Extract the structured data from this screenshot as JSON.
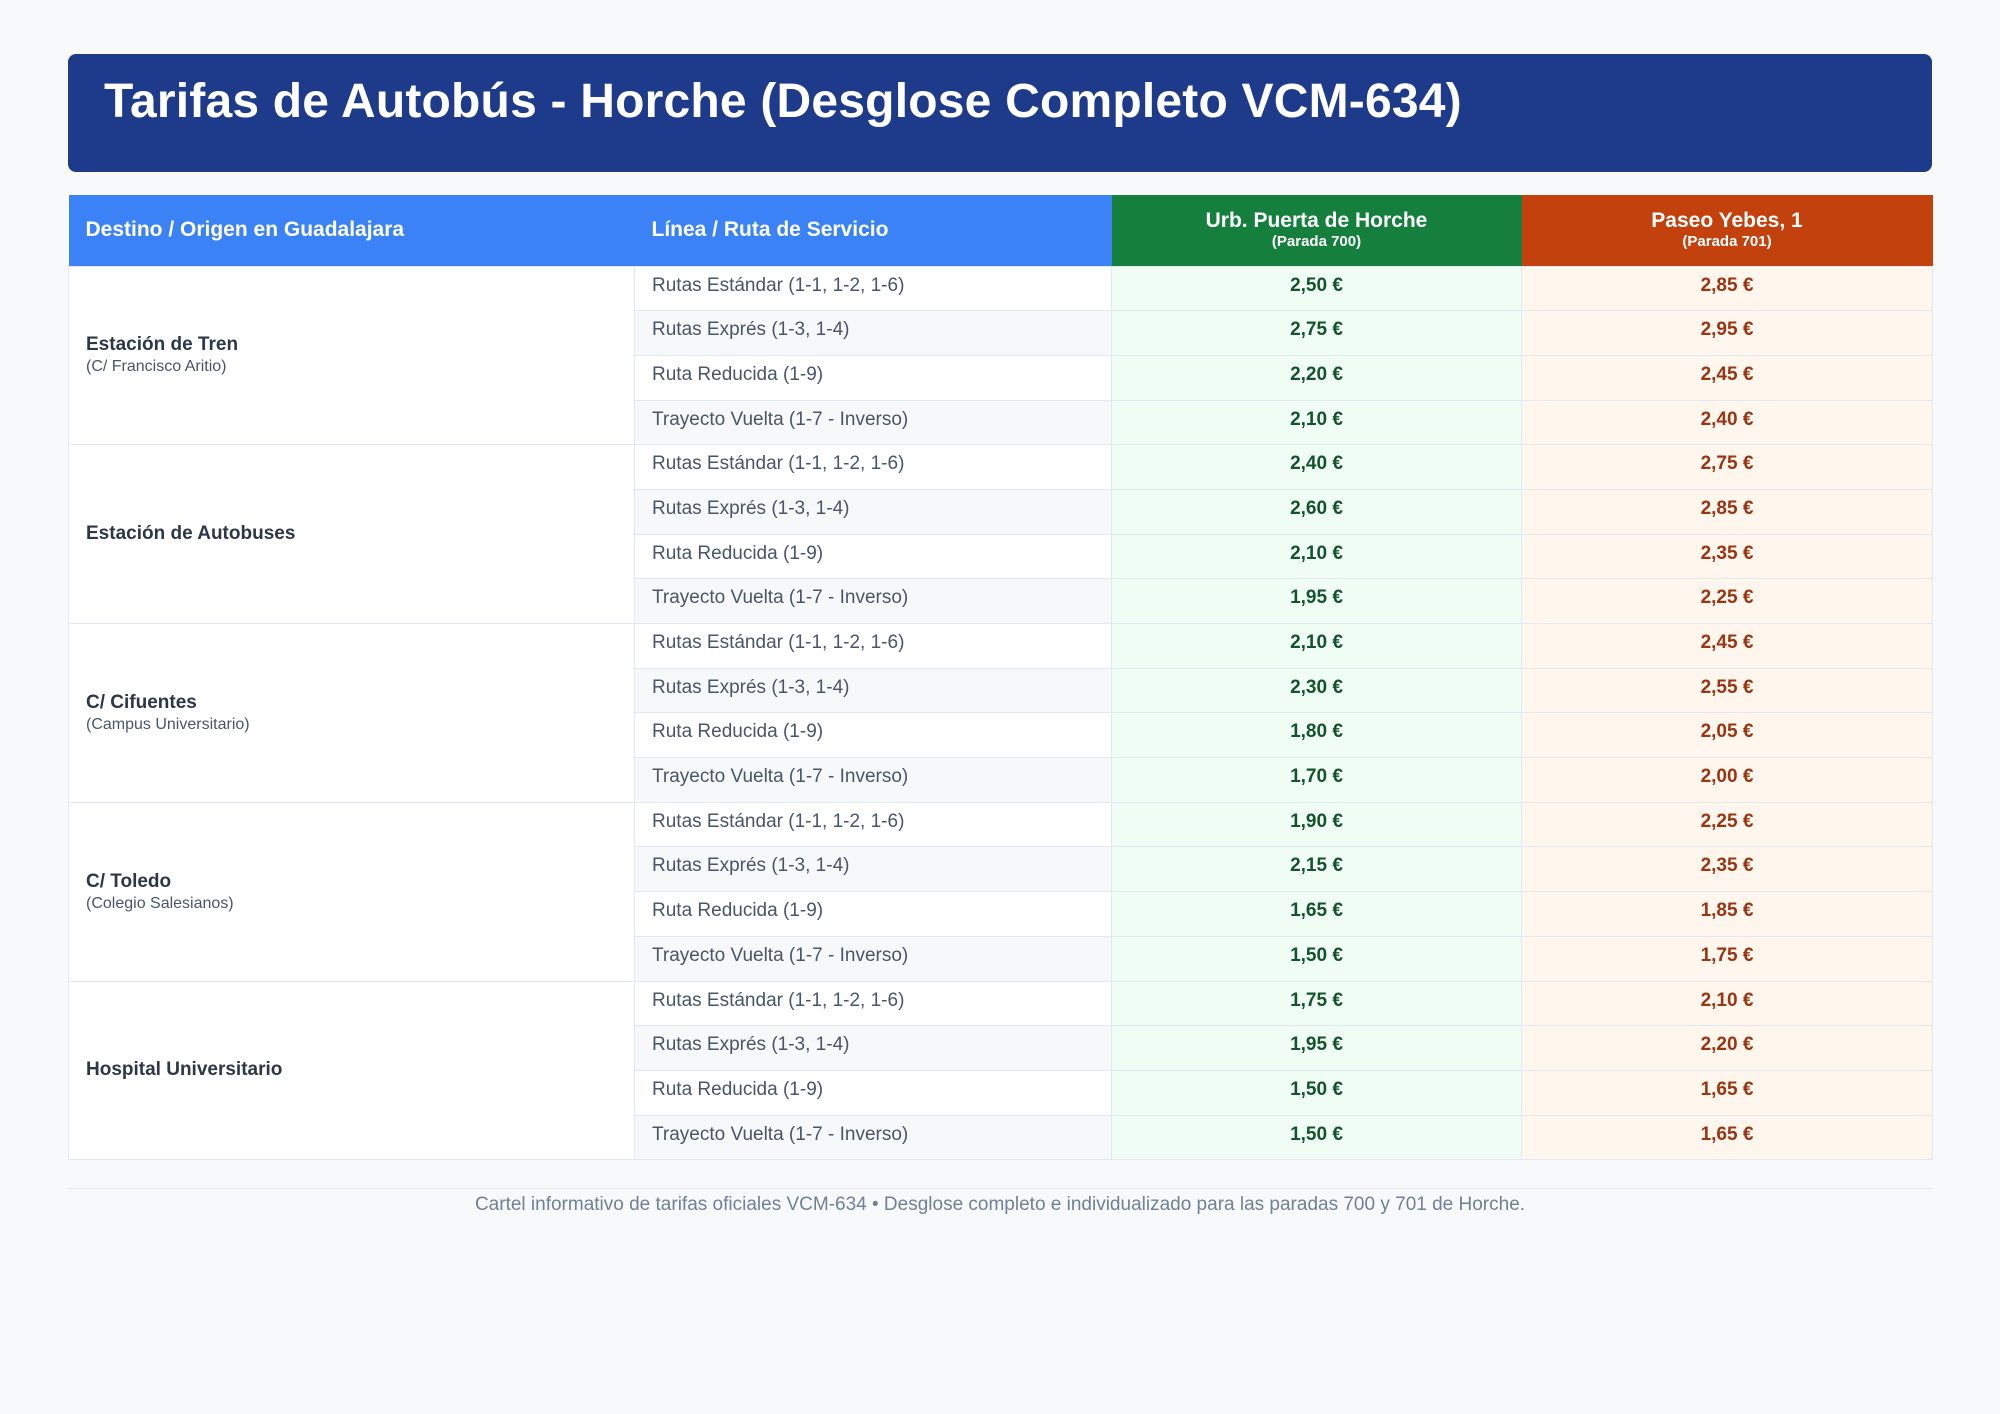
{
  "title": "Tarifas de Autobús - Horche (Desglose Completo VCM-634)",
  "table": {
    "headers": {
      "destination": "Destino / Origen en Guadalajara",
      "line": "Línea / Ruta de Servicio",
      "stop_a": {
        "name": "Urb. Puerta de Horche",
        "code": "(Parada 700)"
      },
      "stop_b": {
        "name": "Paseo Yebes, 1",
        "code": "(Parada 701)"
      }
    },
    "groups": [
      {
        "name": "Estación de Tren",
        "sub": "(C/ Francisco Aritio)",
        "rows": [
          {
            "route": "Rutas Estándar (1-1, 1-2, 1-6)",
            "a": "2,50 €",
            "b": "2,85 €"
          },
          {
            "route": "Rutas Exprés (1-3, 1-4)",
            "a": "2,75 €",
            "b": "2,95 €"
          },
          {
            "route": "Ruta Reducida (1-9)",
            "a": "2,20 €",
            "b": "2,45 €"
          },
          {
            "route": "Trayecto Vuelta (1-7 - Inverso)",
            "a": "2,10 €",
            "b": "2,40 €"
          }
        ]
      },
      {
        "name": "Estación de Autobuses",
        "sub": "",
        "rows": [
          {
            "route": "Rutas Estándar (1-1, 1-2, 1-6)",
            "a": "2,40 €",
            "b": "2,75 €"
          },
          {
            "route": "Rutas Exprés (1-3, 1-4)",
            "a": "2,60 €",
            "b": "2,85 €"
          },
          {
            "route": "Ruta Reducida (1-9)",
            "a": "2,10 €",
            "b": "2,35 €"
          },
          {
            "route": "Trayecto Vuelta (1-7 - Inverso)",
            "a": "1,95 €",
            "b": "2,25 €"
          }
        ]
      },
      {
        "name": "C/ Cifuentes",
        "sub": "(Campus Universitario)",
        "rows": [
          {
            "route": "Rutas Estándar (1-1, 1-2, 1-6)",
            "a": "2,10 €",
            "b": "2,45 €"
          },
          {
            "route": "Rutas Exprés (1-3, 1-4)",
            "a": "2,30 €",
            "b": "2,55 €"
          },
          {
            "route": "Ruta Reducida (1-9)",
            "a": "1,80 €",
            "b": "2,05 €"
          },
          {
            "route": "Trayecto Vuelta (1-7 - Inverso)",
            "a": "1,70 €",
            "b": "2,00 €"
          }
        ]
      },
      {
        "name": "C/ Toledo",
        "sub": "(Colegio Salesianos)",
        "rows": [
          {
            "route": "Rutas Estándar (1-1, 1-2, 1-6)",
            "a": "1,90 €",
            "b": "2,25 €"
          },
          {
            "route": "Rutas Exprés (1-3, 1-4)",
            "a": "2,15 €",
            "b": "2,35 €"
          },
          {
            "route": "Ruta Reducida (1-9)",
            "a": "1,65 €",
            "b": "1,85 €"
          },
          {
            "route": "Trayecto Vuelta (1-7 - Inverso)",
            "a": "1,50 €",
            "b": "1,75 €"
          }
        ]
      },
      {
        "name": "Hospital Universitario",
        "sub": "",
        "rows": [
          {
            "route": "Rutas Estándar (1-1, 1-2, 1-6)",
            "a": "1,75 €",
            "b": "2,10 €"
          },
          {
            "route": "Rutas Exprés (1-3, 1-4)",
            "a": "1,95 €",
            "b": "2,20 €"
          },
          {
            "route": "Ruta Reducida (1-9)",
            "a": "1,50 €",
            "b": "1,65 €"
          },
          {
            "route": "Trayecto Vuelta (1-7 - Inverso)",
            "a": "1,50 €",
            "b": "1,65 €"
          }
        ]
      }
    ]
  },
  "footer": "Cartel informativo de tarifas oficiales VCM-634 • Desglose completo e individualizado para las paradas 700 y 701 de Horche.",
  "colors": {
    "banner": "#1e3a8a",
    "header_blue": "#3b82f6",
    "stop_a_green": "#15803d",
    "stop_b_orange": "#c2410c"
  }
}
